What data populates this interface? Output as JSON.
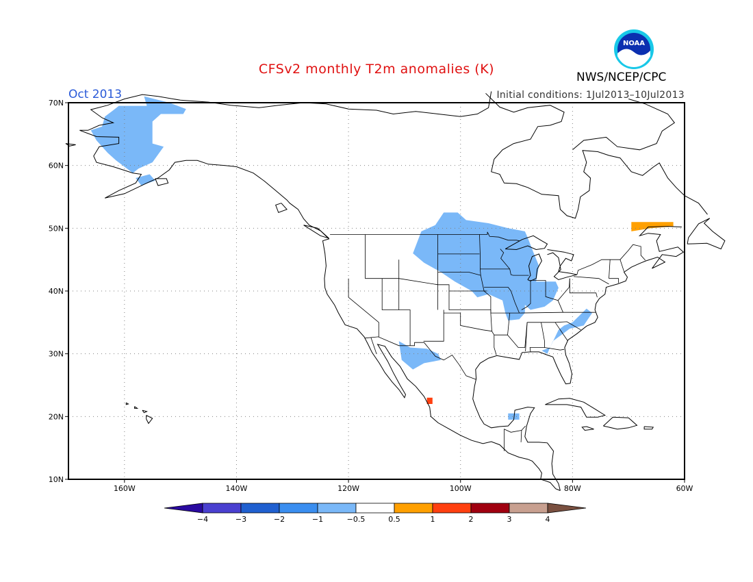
{
  "title": "CFSv2 monthly T2m anomalies (K)",
  "period": "Oct 2013",
  "initial_conditions": "Initial conditions: 1Jul2013–10Jul2013",
  "agency": "NWS/NCEP/CPC",
  "logo_text": "NOAA",
  "colors": {
    "title": "#e01010",
    "period": "#2a5ad8",
    "frame": "#000000",
    "grid": "#808080"
  },
  "map_extent": {
    "lon": [
      -170,
      -60
    ],
    "lat": [
      10,
      70
    ]
  },
  "lat_ticks": [
    {
      "value": 70,
      "label": "70N"
    },
    {
      "value": 60,
      "label": "60N"
    },
    {
      "value": 50,
      "label": "50N"
    },
    {
      "value": 40,
      "label": "40N"
    },
    {
      "value": 30,
      "label": "30N"
    },
    {
      "value": 20,
      "label": "20N"
    },
    {
      "value": 10,
      "label": "10N"
    }
  ],
  "lon_ticks": [
    {
      "value": -160,
      "label": "160W"
    },
    {
      "value": -140,
      "label": "140W"
    },
    {
      "value": -120,
      "label": "120W"
    },
    {
      "value": -100,
      "label": "100W"
    },
    {
      "value": -80,
      "label": "80W"
    },
    {
      "value": -60,
      "label": "60W"
    }
  ],
  "colorbar": {
    "colors": [
      "#2a0aa0",
      "#4a40d0",
      "#2060d0",
      "#3a8ef0",
      "#7ab8f8",
      "#ffffff",
      "#ffa000",
      "#ff4010",
      "#a00010",
      "#c8a090",
      "#7a5040"
    ],
    "labels": [
      "−4",
      "−3",
      "−2",
      "−1",
      "−0.5",
      "0.5",
      "1",
      "2",
      "3",
      "4"
    ]
  },
  "anomaly_regions": [
    {
      "name": "alaska-cold",
      "color": "#7ab8f8",
      "points": [
        [
          -161.0,
          69.5
        ],
        [
          -156.0,
          69.5
        ],
        [
          -156.5,
          71.0
        ],
        [
          -152.0,
          70.0
        ],
        [
          -149.0,
          69.0
        ],
        [
          -149.5,
          68.2
        ],
        [
          -153.5,
          68.2
        ],
        [
          -155.0,
          67.0
        ],
        [
          -155.0,
          63.5
        ],
        [
          -153.0,
          63.0
        ],
        [
          -155.0,
          60.5
        ],
        [
          -157.5,
          59.5
        ],
        [
          -158.5,
          58.8
        ],
        [
          -161.5,
          60.8
        ],
        [
          -163.0,
          62.0
        ],
        [
          -165.0,
          64.0
        ],
        [
          -166.0,
          65.6
        ],
        [
          -164.0,
          66.2
        ],
        [
          -163.5,
          67.8
        ],
        [
          -162.0,
          68.8
        ]
      ]
    },
    {
      "name": "aleutian-cold",
      "color": "#7ab8f8",
      "points": [
        [
          -158.0,
          58.0
        ],
        [
          -155.5,
          58.6
        ],
        [
          -154.5,
          57.6
        ],
        [
          -157.0,
          56.8
        ]
      ]
    },
    {
      "name": "central-us-cold",
      "color": "#7ab8f8",
      "points": [
        [
          -108.5,
          46.0
        ],
        [
          -107.0,
          49.5
        ],
        [
          -104.5,
          50.5
        ],
        [
          -103.0,
          52.5
        ],
        [
          -100.5,
          52.5
        ],
        [
          -99.0,
          51.3
        ],
        [
          -95.0,
          50.8
        ],
        [
          -91.5,
          50.0
        ],
        [
          -88.5,
          49.5
        ],
        [
          -88.0,
          48.5
        ],
        [
          -87.0,
          46.2
        ],
        [
          -86.0,
          44.0
        ],
        [
          -86.5,
          41.5
        ],
        [
          -83.0,
          41.5
        ],
        [
          -82.5,
          40.5
        ],
        [
          -83.5,
          38.5
        ],
        [
          -85.0,
          37.5
        ],
        [
          -87.5,
          37.0
        ],
        [
          -88.5,
          37.8
        ],
        [
          -88.5,
          36.5
        ],
        [
          -89.5,
          35.5
        ],
        [
          -91.5,
          35.3
        ],
        [
          -92.0,
          36.5
        ],
        [
          -92.5,
          38.5
        ],
        [
          -95.0,
          39.5
        ],
        [
          -97.0,
          39.0
        ],
        [
          -98.0,
          40.0
        ],
        [
          -101.0,
          41.5
        ],
        [
          -103.5,
          43.0
        ],
        [
          -106.5,
          44.5
        ]
      ]
    },
    {
      "name": "southeast-cold",
      "color": "#7ab8f8",
      "points": [
        [
          -83.5,
          32.0
        ],
        [
          -80.5,
          34.0
        ],
        [
          -78.0,
          34.5
        ],
        [
          -76.5,
          36.5
        ],
        [
          -77.5,
          37.2
        ],
        [
          -80.0,
          35.0
        ],
        [
          -81.5,
          34.5
        ],
        [
          -82.5,
          33.8
        ],
        [
          -84.0,
          31.0
        ],
        [
          -85.5,
          30.5
        ],
        [
          -84.5,
          30.0
        ]
      ]
    },
    {
      "name": "mexico-cold",
      "color": "#7ab8f8",
      "points": [
        [
          -111.0,
          32.0
        ],
        [
          -109.0,
          31.0
        ],
        [
          -106.0,
          30.8
        ],
        [
          -104.0,
          30.0
        ],
        [
          -103.5,
          29.0
        ],
        [
          -106.5,
          28.5
        ],
        [
          -108.5,
          27.5
        ],
        [
          -110.5,
          29.0
        ]
      ]
    },
    {
      "name": "yucatan-cold",
      "color": "#7ab8f8",
      "points": [
        [
          -91.5,
          20.5
        ],
        [
          -89.5,
          20.5
        ],
        [
          -89.5,
          19.5
        ],
        [
          -91.5,
          19.5
        ]
      ]
    },
    {
      "name": "quebec-warm",
      "color": "#ffa000",
      "points": [
        [
          -69.5,
          51.0
        ],
        [
          -62.0,
          51.0
        ],
        [
          -62.0,
          50.3
        ],
        [
          -66.0,
          50.0
        ],
        [
          -69.5,
          49.5
        ]
      ]
    },
    {
      "name": "mexico-warm",
      "color": "#ff4010",
      "points": [
        [
          -106.0,
          23.0
        ],
        [
          -105.0,
          23.0
        ],
        [
          -105.0,
          22.0
        ],
        [
          -106.0,
          22.0
        ]
      ]
    }
  ]
}
